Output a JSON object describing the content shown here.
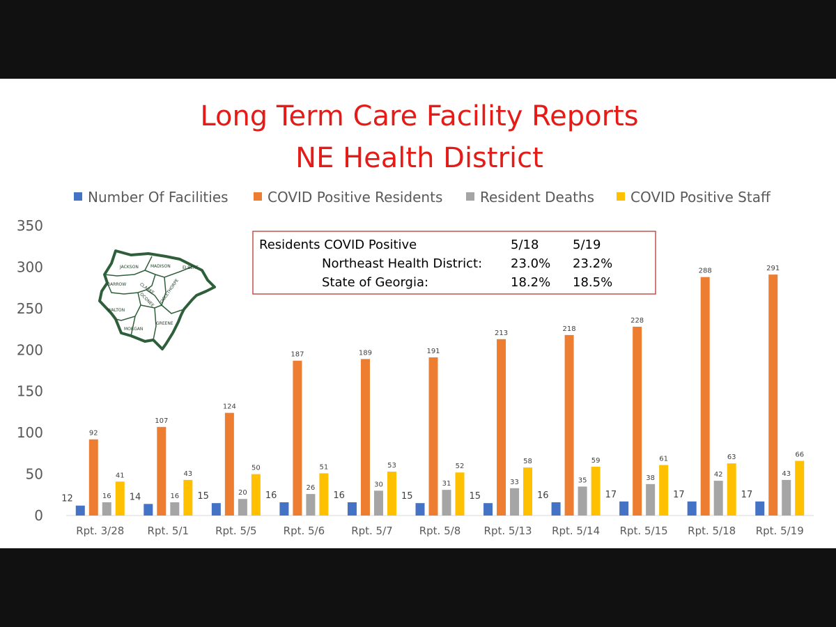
{
  "colors": {
    "title": "#e41b17",
    "facilities": "#4472c4",
    "residents": "#ed7d31",
    "deaths": "#a5a5a5",
    "staff": "#ffc000",
    "inset_border": "#c0504d",
    "map_outline": "#2e5e3a"
  },
  "chart_data": {
    "type": "bar",
    "title": "Long Term Care Facility Reports",
    "subtitle": "NE Health District",
    "legend_position": "top",
    "ylim": [
      0,
      350
    ],
    "yticks": [
      0,
      50,
      100,
      150,
      200,
      250,
      300,
      350
    ],
    "grid": false,
    "categories": [
      "Rpt. 3/28",
      "Rpt. 5/1",
      "Rpt. 5/5",
      "Rpt. 5/6",
      "Rpt. 5/7",
      "Rpt. 5/8",
      "Rpt. 5/13",
      "Rpt. 5/14",
      "Rpt. 5/15",
      "Rpt. 5/18",
      "Rpt. 5/19"
    ],
    "series": [
      {
        "name": "Number Of Facilities",
        "values": [
          12,
          14,
          15,
          16,
          16,
          15,
          15,
          16,
          17,
          17,
          17
        ]
      },
      {
        "name": "COVID Positive Residents",
        "values": [
          92,
          107,
          124,
          187,
          189,
          191,
          213,
          218,
          228,
          288,
          291
        ]
      },
      {
        "name": "Resident Deaths",
        "values": [
          16,
          16,
          20,
          26,
          30,
          31,
          33,
          35,
          38,
          42,
          43
        ]
      },
      {
        "name": "COVID Positive Staff",
        "values": [
          41,
          43,
          50,
          51,
          53,
          52,
          58,
          59,
          61,
          63,
          66
        ]
      }
    ]
  },
  "inset": {
    "header": "Residents COVID Positive",
    "col1": "5/18",
    "col2": "5/19",
    "rows": [
      {
        "label": "Northeast Health District:",
        "v1": "23.0%",
        "v2": "23.2%"
      },
      {
        "label": "State of Georgia:",
        "v1": "18.2%",
        "v2": "18.5%"
      }
    ]
  },
  "map": {
    "counties": [
      "JACKSON",
      "MADISON",
      "ELBERT",
      "BARROW",
      "CLARKE",
      "OCONEE",
      "OGLETHORPE",
      "WALTON",
      "MORGAN",
      "GREENE"
    ]
  }
}
